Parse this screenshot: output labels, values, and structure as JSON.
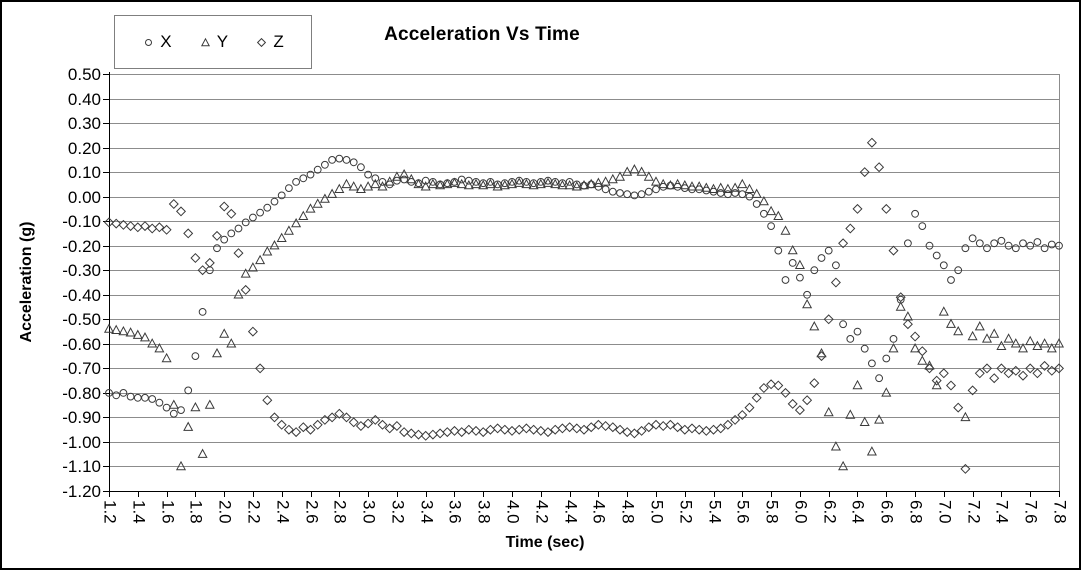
{
  "figure": {
    "title": "Acceleration Vs Time"
  },
  "legend": {
    "items": [
      {
        "label": "X",
        "marker": "circle"
      },
      {
        "label": "Y",
        "marker": "triangle"
      },
      {
        "label": "Z",
        "marker": "diamond"
      }
    ]
  },
  "colors": {
    "marker_stroke": "#3a3a3a",
    "gridline": "#8c8c8c",
    "axis": "#000000",
    "background": "#ffffff"
  },
  "chart_data": {
    "type": "scatter",
    "title": "Acceleration Vs Time",
    "xlabel": "Time (sec)",
    "ylabel": "Acceleration (g)",
    "xlim": [
      1.2,
      7.8
    ],
    "ylim": [
      -1.2,
      0.5
    ],
    "grid": "horizontal",
    "legend_position": "top-left",
    "x_tick_labels": [
      "1.2",
      "1.4",
      "1.6",
      "1.8",
      "2.0",
      "2.2",
      "2.4",
      "2.6",
      "2.8",
      "3.0",
      "3.2",
      "3.4",
      "3.6",
      "3.8",
      "4.0",
      "4.2",
      "4.4",
      "4.6",
      "4.8",
      "5.0",
      "5.2",
      "5.4",
      "5.6",
      "5.8",
      "6.0",
      "6.2",
      "6.4",
      "6.6",
      "6.8",
      "7.0",
      "7.2",
      "7.4",
      "7.6",
      "7.8"
    ],
    "y_tick_labels": [
      "0.50",
      "0.40",
      "0.30",
      "0.20",
      "0.10",
      "0.00",
      "-0.10",
      "-0.20",
      "-0.30",
      "-0.40",
      "-0.50",
      "-0.60",
      "-0.70",
      "-0.80",
      "-0.90",
      "-1.00",
      "-1.10",
      "-1.20"
    ],
    "x_start": 1.2,
    "x_step": 0.05,
    "series": [
      {
        "name": "X",
        "marker": "circle",
        "values": [
          -0.8,
          -0.81,
          -0.8,
          -0.815,
          -0.82,
          -0.82,
          -0.825,
          -0.84,
          -0.86,
          -0.885,
          -0.87,
          -0.79,
          -0.65,
          -0.47,
          -0.3,
          -0.21,
          -0.175,
          -0.15,
          -0.13,
          -0.105,
          -0.085,
          -0.065,
          -0.045,
          -0.02,
          0.005,
          0.035,
          0.06,
          0.075,
          0.09,
          0.11,
          0.13,
          0.15,
          0.155,
          0.15,
          0.14,
          0.12,
          0.09,
          0.075,
          0.06,
          0.05,
          0.065,
          0.07,
          0.06,
          0.055,
          0.065,
          0.06,
          0.05,
          0.055,
          0.06,
          0.07,
          0.065,
          0.06,
          0.055,
          0.06,
          0.05,
          0.055,
          0.06,
          0.065,
          0.06,
          0.055,
          0.06,
          0.065,
          0.06,
          0.055,
          0.06,
          0.05,
          0.045,
          0.05,
          0.04,
          0.03,
          0.02,
          0.015,
          0.01,
          0.005,
          0.01,
          0.02,
          0.03,
          0.04,
          0.045,
          0.04,
          0.035,
          0.03,
          0.03,
          0.025,
          0.02,
          0.015,
          0.01,
          0.015,
          0.01,
          0.0,
          -0.03,
          -0.07,
          -0.12,
          -0.22,
          -0.34,
          -0.27,
          -0.33,
          -0.4,
          -0.3,
          -0.25,
          -0.22,
          -0.28,
          -0.52,
          -0.58,
          -0.55,
          -0.62,
          -0.68,
          -0.74,
          -0.66,
          -0.58,
          -0.42,
          -0.19,
          -0.07,
          -0.12,
          -0.2,
          -0.24,
          -0.28,
          -0.34,
          -0.3,
          -0.21,
          -0.17,
          -0.19,
          -0.21,
          -0.19,
          -0.18,
          -0.2,
          -0.21,
          -0.19,
          -0.2,
          -0.185,
          -0.21,
          -0.195,
          -0.2
        ]
      },
      {
        "name": "Y",
        "marker": "triangle",
        "values": [
          -0.54,
          -0.545,
          -0.55,
          -0.555,
          -0.565,
          -0.575,
          -0.6,
          -0.62,
          -0.66,
          -0.85,
          -1.1,
          -0.94,
          -0.86,
          -1.05,
          -0.85,
          -0.64,
          -0.56,
          -0.6,
          -0.4,
          -0.315,
          -0.29,
          -0.26,
          -0.225,
          -0.2,
          -0.17,
          -0.14,
          -0.11,
          -0.08,
          -0.05,
          -0.03,
          -0.01,
          0.01,
          0.03,
          0.05,
          0.04,
          0.03,
          0.04,
          0.05,
          0.04,
          0.06,
          0.08,
          0.09,
          0.07,
          0.05,
          0.04,
          0.05,
          0.045,
          0.05,
          0.055,
          0.05,
          0.045,
          0.05,
          0.045,
          0.05,
          0.04,
          0.045,
          0.05,
          0.055,
          0.05,
          0.045,
          0.05,
          0.055,
          0.05,
          0.045,
          0.045,
          0.04,
          0.045,
          0.05,
          0.055,
          0.06,
          0.07,
          0.08,
          0.1,
          0.11,
          0.1,
          0.08,
          0.06,
          0.05,
          0.045,
          0.05,
          0.045,
          0.04,
          0.04,
          0.035,
          0.03,
          0.035,
          0.03,
          0.035,
          0.05,
          0.03,
          0.01,
          -0.02,
          -0.06,
          -0.08,
          -0.14,
          -0.22,
          -0.28,
          -0.44,
          -0.53,
          -0.64,
          -0.88,
          -1.02,
          -1.1,
          -0.89,
          -0.77,
          -0.92,
          -1.04,
          -0.91,
          -0.8,
          -0.62,
          -0.45,
          -0.49,
          -0.62,
          -0.67,
          -0.69,
          -0.77,
          -0.47,
          -0.52,
          -0.55,
          -0.9,
          -0.57,
          -0.53,
          -0.58,
          -0.56,
          -0.61,
          -0.58,
          -0.6,
          -0.62,
          -0.59,
          -0.61,
          -0.6,
          -0.62,
          -0.6
        ]
      },
      {
        "name": "Z",
        "marker": "diamond",
        "values": [
          -0.105,
          -0.11,
          -0.115,
          -0.12,
          -0.125,
          -0.12,
          -0.13,
          -0.125,
          -0.135,
          -0.03,
          -0.06,
          -0.15,
          -0.25,
          -0.3,
          -0.27,
          -0.16,
          -0.04,
          -0.07,
          -0.23,
          -0.38,
          -0.55,
          -0.7,
          -0.83,
          -0.9,
          -0.93,
          -0.95,
          -0.96,
          -0.94,
          -0.95,
          -0.93,
          -0.91,
          -0.9,
          -0.885,
          -0.9,
          -0.92,
          -0.935,
          -0.925,
          -0.91,
          -0.93,
          -0.945,
          -0.935,
          -0.96,
          -0.965,
          -0.97,
          -0.975,
          -0.97,
          -0.965,
          -0.96,
          -0.955,
          -0.96,
          -0.95,
          -0.955,
          -0.96,
          -0.95,
          -0.945,
          -0.95,
          -0.955,
          -0.95,
          -0.945,
          -0.95,
          -0.955,
          -0.96,
          -0.95,
          -0.945,
          -0.94,
          -0.945,
          -0.95,
          -0.94,
          -0.93,
          -0.935,
          -0.94,
          -0.95,
          -0.96,
          -0.965,
          -0.955,
          -0.94,
          -0.93,
          -0.935,
          -0.93,
          -0.94,
          -0.95,
          -0.945,
          -0.95,
          -0.955,
          -0.95,
          -0.945,
          -0.93,
          -0.91,
          -0.89,
          -0.86,
          -0.82,
          -0.78,
          -0.765,
          -0.77,
          -0.8,
          -0.845,
          -0.87,
          -0.83,
          -0.76,
          -0.65,
          -0.5,
          -0.35,
          -0.19,
          -0.13,
          -0.05,
          0.1,
          0.22,
          0.12,
          -0.05,
          -0.22,
          -0.41,
          -0.52,
          -0.57,
          -0.63,
          -0.7,
          -0.75,
          -0.72,
          -0.77,
          -0.86,
          -1.11,
          -0.79,
          -0.72,
          -0.7,
          -0.74,
          -0.7,
          -0.72,
          -0.71,
          -0.73,
          -0.7,
          -0.72,
          -0.69,
          -0.71,
          -0.7
        ]
      }
    ]
  }
}
